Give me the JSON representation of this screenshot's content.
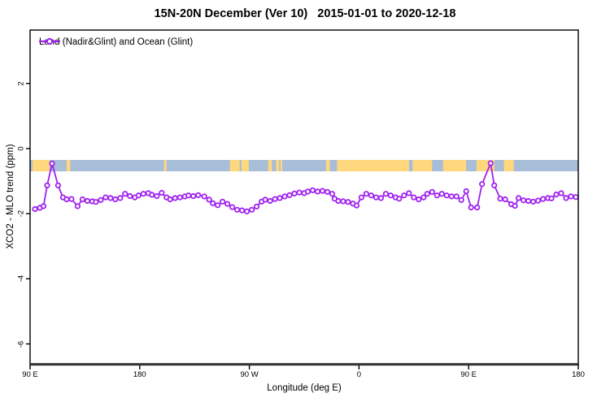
{
  "header": {
    "title": "15N-20N December (Ver 10)   2015-01-01 to 2020-12-18"
  },
  "legend": {
    "label": "Land (Nadir&Glint) and Ocean (Glint)"
  },
  "colors": {
    "series_purple": "#a020f0",
    "ocean_band": "#a8bdd7",
    "land_band": "#ffd87e",
    "axis_black": "#000000"
  },
  "chart_data": {
    "type": "line",
    "title": "15N-20N December (Ver 10)   2015-01-01 to 2020-12-18",
    "xlabel": "Longitude (deg E)",
    "ylabel": "XCO2 - MLO trend (ppm)",
    "x_axis_note": "longitude shown from 90E eastward through 180, 90W, 0, 90E to 180; stored as degrees east of 90E",
    "xlim": [
      0,
      450
    ],
    "ylim": [
      -6.61,
      3.64
    ],
    "grid": false,
    "legend_position": "top-left",
    "x_ticks": [
      {
        "pos": 0,
        "label": "90 E"
      },
      {
        "pos": 90,
        "label": "180"
      },
      {
        "pos": 180,
        "label": "90 W"
      },
      {
        "pos": 270,
        "label": "0"
      },
      {
        "pos": 360,
        "label": "90 E"
      },
      {
        "pos": 450,
        "label": "180"
      }
    ],
    "y_ticks": [
      {
        "pos": 2,
        "label": "2"
      },
      {
        "pos": 0,
        "label": "0"
      },
      {
        "pos": -2,
        "label": "-2"
      },
      {
        "pos": -4,
        "label": "-4"
      },
      {
        "pos": -6,
        "label": "-6"
      }
    ],
    "map_band": {
      "description": "land/ocean strip of the 15N-20N latitude belt drawn across the plot",
      "y_top": -0.35,
      "y_bottom": -0.7,
      "ocean_color": "#a8bdd7",
      "land_color": "#ffd87e",
      "land_patches_deg": [
        [
          2,
          16
        ],
        [
          30,
          33
        ],
        [
          110,
          112
        ],
        [
          164,
          172
        ],
        [
          173.5,
          179.5
        ],
        [
          195.5,
          198.5
        ],
        [
          202,
          204.5
        ],
        [
          205.5,
          207
        ],
        [
          243,
          246
        ],
        [
          252,
          311
        ],
        [
          314,
          330
        ],
        [
          339,
          358
        ],
        [
          366.5,
          381
        ],
        [
          389,
          397
        ]
      ]
    },
    "series": [
      {
        "name": "Land (Nadir&Glint) and Ocean (Glint)",
        "color": "#a020f0",
        "marker": "open-circle",
        "points": [
          [
            4,
            -1.86
          ],
          [
            8,
            -1.82
          ],
          [
            11,
            -1.77
          ],
          [
            14,
            -1.13
          ],
          [
            18,
            -0.46
          ],
          [
            23,
            -1.13
          ],
          [
            27,
            -1.5
          ],
          [
            30,
            -1.56
          ],
          [
            34,
            -1.55
          ],
          [
            39,
            -1.77
          ],
          [
            43,
            -1.56
          ],
          [
            47,
            -1.61
          ],
          [
            51,
            -1.62
          ],
          [
            54,
            -1.64
          ],
          [
            58,
            -1.58
          ],
          [
            62,
            -1.5
          ],
          [
            66,
            -1.52
          ],
          [
            70,
            -1.56
          ],
          [
            74,
            -1.52
          ],
          [
            78,
            -1.39
          ],
          [
            82,
            -1.46
          ],
          [
            86,
            -1.5
          ],
          [
            89,
            -1.44
          ],
          [
            93,
            -1.39
          ],
          [
            97,
            -1.37
          ],
          [
            100,
            -1.42
          ],
          [
            104,
            -1.46
          ],
          [
            108,
            -1.36
          ],
          [
            112,
            -1.5
          ],
          [
            115,
            -1.56
          ],
          [
            119,
            -1.52
          ],
          [
            123,
            -1.5
          ],
          [
            127,
            -1.47
          ],
          [
            130,
            -1.44
          ],
          [
            134,
            -1.46
          ],
          [
            138,
            -1.43
          ],
          [
            143,
            -1.47
          ],
          [
            147,
            -1.57
          ],
          [
            150,
            -1.68
          ],
          [
            154,
            -1.74
          ],
          [
            158,
            -1.63
          ],
          [
            162,
            -1.7
          ],
          [
            166,
            -1.8
          ],
          [
            170,
            -1.88
          ],
          [
            174,
            -1.9
          ],
          [
            178,
            -1.93
          ],
          [
            182,
            -1.88
          ],
          [
            186,
            -1.78
          ],
          [
            190,
            -1.63
          ],
          [
            193,
            -1.57
          ],
          [
            197,
            -1.61
          ],
          [
            201,
            -1.55
          ],
          [
            205,
            -1.52
          ],
          [
            209,
            -1.47
          ],
          [
            213,
            -1.43
          ],
          [
            217,
            -1.38
          ],
          [
            221,
            -1.35
          ],
          [
            225,
            -1.37
          ],
          [
            228,
            -1.32
          ],
          [
            232,
            -1.28
          ],
          [
            236,
            -1.32
          ],
          [
            240,
            -1.3
          ],
          [
            244,
            -1.33
          ],
          [
            248,
            -1.39
          ],
          [
            250,
            -1.54
          ],
          [
            253,
            -1.61
          ],
          [
            257,
            -1.62
          ],
          [
            261,
            -1.64
          ],
          [
            265,
            -1.69
          ],
          [
            268,
            -1.75
          ],
          [
            272,
            -1.5
          ],
          [
            276,
            -1.39
          ],
          [
            280,
            -1.44
          ],
          [
            284,
            -1.5
          ],
          [
            288,
            -1.52
          ],
          [
            292,
            -1.39
          ],
          [
            296,
            -1.44
          ],
          [
            300,
            -1.5
          ],
          [
            303,
            -1.54
          ],
          [
            307,
            -1.44
          ],
          [
            311,
            -1.37
          ],
          [
            315,
            -1.5
          ],
          [
            319,
            -1.56
          ],
          [
            323,
            -1.5
          ],
          [
            326,
            -1.39
          ],
          [
            330,
            -1.33
          ],
          [
            334,
            -1.44
          ],
          [
            338,
            -1.39
          ],
          [
            342,
            -1.44
          ],
          [
            346,
            -1.47
          ],
          [
            350,
            -1.47
          ],
          [
            354,
            -1.58
          ],
          [
            358,
            -1.31
          ],
          [
            362,
            -1.81
          ],
          [
            367,
            -1.81
          ],
          [
            371,
            -1.09
          ],
          [
            378,
            -0.45
          ],
          [
            381,
            -1.13
          ],
          [
            386,
            -1.54
          ],
          [
            390,
            -1.56
          ],
          [
            395,
            -1.71
          ],
          [
            398,
            -1.76
          ],
          [
            401,
            -1.52
          ],
          [
            405,
            -1.59
          ],
          [
            409,
            -1.61
          ],
          [
            413,
            -1.63
          ],
          [
            417,
            -1.6
          ],
          [
            421,
            -1.55
          ],
          [
            425,
            -1.52
          ],
          [
            428,
            -1.53
          ],
          [
            432,
            -1.41
          ],
          [
            436,
            -1.37
          ],
          [
            440,
            -1.52
          ],
          [
            444,
            -1.47
          ],
          [
            448,
            -1.49
          ]
        ]
      }
    ]
  }
}
